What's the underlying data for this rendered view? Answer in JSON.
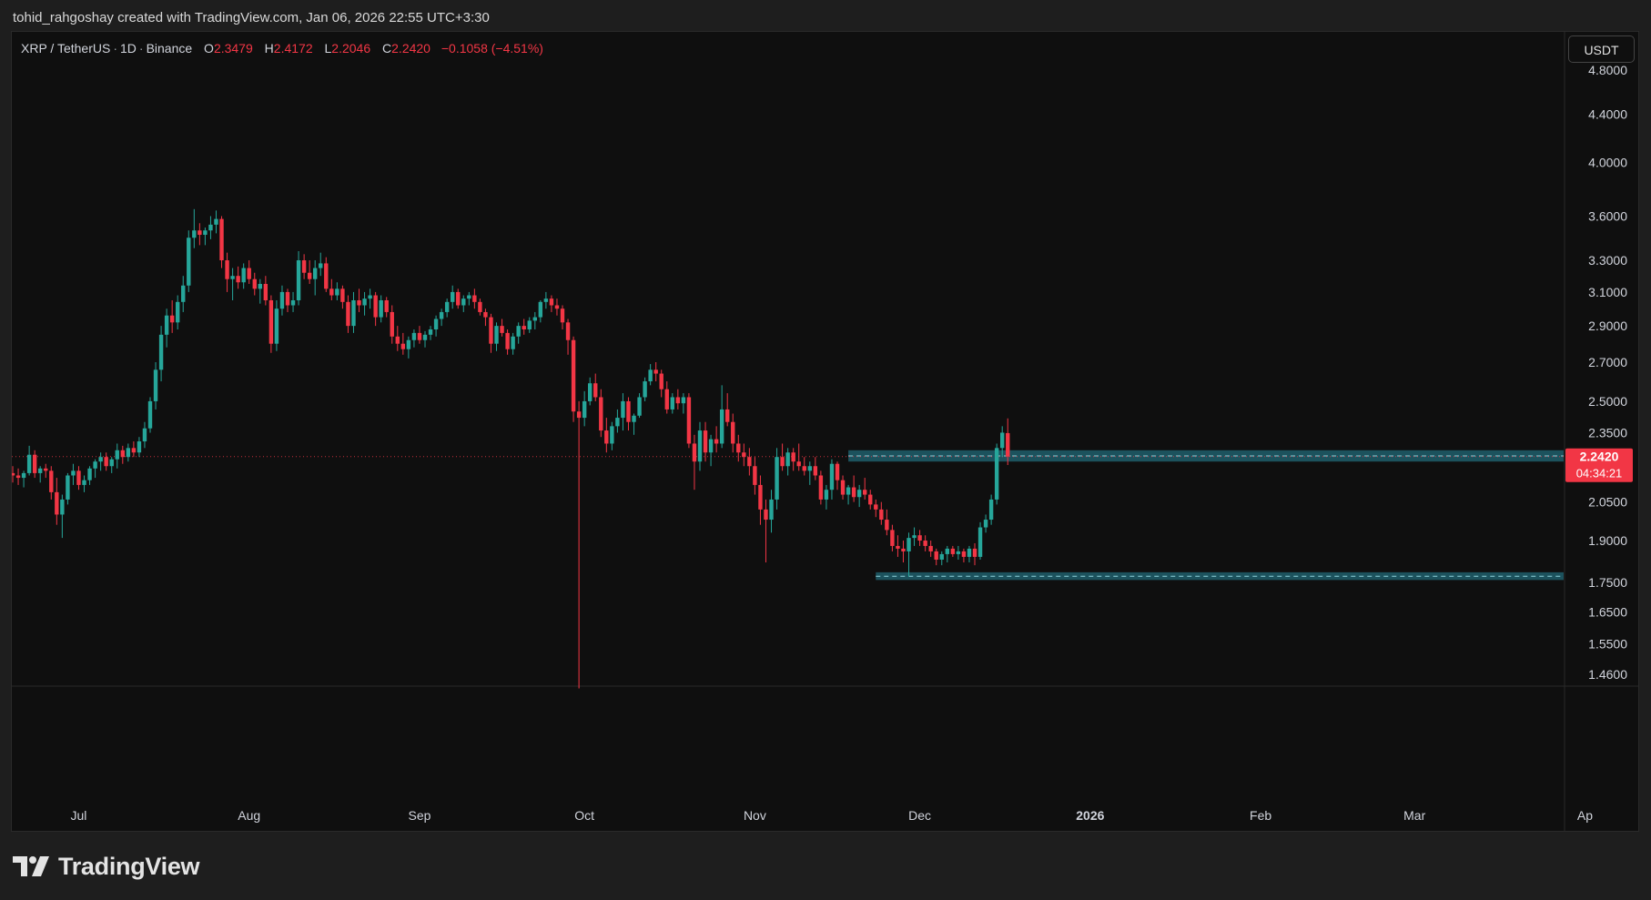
{
  "header": {
    "attribution": "tohid_rahgoshay created with TradingView.com, Jan 06, 2026 22:55 UTC+3:30"
  },
  "legend": {
    "symbol": "XRP / TetherUS",
    "interval": "1D",
    "exchange": "Binance",
    "open_label": "O",
    "open": "2.3479",
    "high_label": "H",
    "high": "2.4172",
    "low_label": "L",
    "low": "2.2046",
    "close_label": "C",
    "close": "2.2420",
    "change": "−0.1058 (−4.51%)"
  },
  "currency_button": "USDT",
  "price_label": {
    "price": "2.2420",
    "countdown": "04:34:21"
  },
  "colors": {
    "up": "#26a69a",
    "down": "#f23645",
    "zone_fill": "#1e5a66",
    "zone_line": "#8fd3dc",
    "background": "#0f0f0f",
    "axis_text": "#d1d4dc"
  },
  "footer": {
    "brand": "TradingView",
    "logo_icon": "tradingview-logo-icon"
  },
  "chart_data": {
    "type": "candlestick",
    "y_scale": "log",
    "ylim": [
      1.4,
      5.0
    ],
    "y_ticks": [
      "4.8000",
      "4.4000",
      "4.0000",
      "3.6000",
      "3.3000",
      "3.1000",
      "2.9000",
      "2.7000",
      "2.5000",
      "2.3500",
      "2.0500",
      "1.9000",
      "1.7500",
      "1.6500",
      "1.5500",
      "1.4600"
    ],
    "x_labels": [
      {
        "date": "2025-07-01",
        "label": "Jul",
        "bold": false
      },
      {
        "date": "2025-08-01",
        "label": "Aug",
        "bold": false
      },
      {
        "date": "2025-09-01",
        "label": "Sep",
        "bold": false
      },
      {
        "date": "2025-10-01",
        "label": "Oct",
        "bold": false
      },
      {
        "date": "2025-11-01",
        "label": "Nov",
        "bold": false
      },
      {
        "date": "2025-12-01",
        "label": "Dec",
        "bold": false
      },
      {
        "date": "2026-01-01",
        "label": "2026",
        "bold": true
      },
      {
        "date": "2026-02-01",
        "label": "Feb",
        "bold": false
      },
      {
        "date": "2026-03-01",
        "label": "Mar",
        "bold": false
      },
      {
        "date": "2026-04-01",
        "label": "Ap",
        "bold": false
      }
    ],
    "first_date": "2025-06-19",
    "last_price": 2.242,
    "zones": [
      {
        "name": "resistance",
        "top": 2.27,
        "bottom": 2.22,
        "mid": 2.245,
        "from": "2025-11-18"
      },
      {
        "name": "support",
        "top": 1.785,
        "bottom": 1.758,
        "mid": 1.771,
        "from": "2025-11-23"
      }
    ],
    "ohlc": [
      [
        2.17,
        2.2,
        2.13,
        2.16
      ],
      [
        2.16,
        2.19,
        2.12,
        2.15
      ],
      [
        2.15,
        2.18,
        2.11,
        2.17
      ],
      [
        2.17,
        2.29,
        2.16,
        2.25
      ],
      [
        2.25,
        2.27,
        2.15,
        2.17
      ],
      [
        2.17,
        2.2,
        2.13,
        2.19
      ],
      [
        2.19,
        2.21,
        2.15,
        2.18
      ],
      [
        2.18,
        2.2,
        2.06,
        2.09
      ],
      [
        2.09,
        2.15,
        1.96,
        2.0
      ],
      [
        2.0,
        2.08,
        1.91,
        2.06
      ],
      [
        2.06,
        2.17,
        2.04,
        2.16
      ],
      [
        2.16,
        2.21,
        2.12,
        2.18
      ],
      [
        2.18,
        2.2,
        2.1,
        2.12
      ],
      [
        2.12,
        2.16,
        2.09,
        2.14
      ],
      [
        2.14,
        2.2,
        2.12,
        2.19
      ],
      [
        2.19,
        2.23,
        2.15,
        2.22
      ],
      [
        2.22,
        2.26,
        2.18,
        2.24
      ],
      [
        2.24,
        2.26,
        2.18,
        2.2
      ],
      [
        2.2,
        2.24,
        2.17,
        2.23
      ],
      [
        2.23,
        2.3,
        2.19,
        2.27
      ],
      [
        2.27,
        2.29,
        2.21,
        2.24
      ],
      [
        2.24,
        2.3,
        2.22,
        2.28
      ],
      [
        2.28,
        2.31,
        2.24,
        2.26
      ],
      [
        2.26,
        2.33,
        2.24,
        2.31
      ],
      [
        2.31,
        2.4,
        2.28,
        2.37
      ],
      [
        2.37,
        2.52,
        2.35,
        2.5
      ],
      [
        2.5,
        2.7,
        2.46,
        2.66
      ],
      [
        2.66,
        2.9,
        2.6,
        2.85
      ],
      [
        2.85,
        3.0,
        2.78,
        2.96
      ],
      [
        2.96,
        3.05,
        2.86,
        2.92
      ],
      [
        2.92,
        3.08,
        2.88,
        3.04
      ],
      [
        3.04,
        3.2,
        2.98,
        3.14
      ],
      [
        3.14,
        3.5,
        3.1,
        3.45
      ],
      [
        3.45,
        3.65,
        3.38,
        3.5
      ],
      [
        3.5,
        3.55,
        3.4,
        3.47
      ],
      [
        3.47,
        3.52,
        3.4,
        3.5
      ],
      [
        3.5,
        3.6,
        3.44,
        3.54
      ],
      [
        3.54,
        3.64,
        3.48,
        3.58
      ],
      [
        3.58,
        3.6,
        3.25,
        3.3
      ],
      [
        3.3,
        3.35,
        3.1,
        3.18
      ],
      [
        3.18,
        3.25,
        3.05,
        3.2
      ],
      [
        3.2,
        3.26,
        3.12,
        3.16
      ],
      [
        3.16,
        3.28,
        3.12,
        3.25
      ],
      [
        3.25,
        3.3,
        3.15,
        3.18
      ],
      [
        3.18,
        3.22,
        3.08,
        3.12
      ],
      [
        3.12,
        3.18,
        3.03,
        3.15
      ],
      [
        3.15,
        3.2,
        3.02,
        3.05
      ],
      [
        3.05,
        3.08,
        2.75,
        2.8
      ],
      [
        2.8,
        3.05,
        2.76,
        3.0
      ],
      [
        3.0,
        3.14,
        2.96,
        3.1
      ],
      [
        3.1,
        3.12,
        2.98,
        3.02
      ],
      [
        3.02,
        3.1,
        2.98,
        3.05
      ],
      [
        3.05,
        3.36,
        3.02,
        3.3
      ],
      [
        3.3,
        3.34,
        3.18,
        3.22
      ],
      [
        3.22,
        3.3,
        3.15,
        3.18
      ],
      [
        3.18,
        3.3,
        3.08,
        3.25
      ],
      [
        3.25,
        3.35,
        3.2,
        3.28
      ],
      [
        3.28,
        3.32,
        3.1,
        3.12
      ],
      [
        3.12,
        3.18,
        3.05,
        3.08
      ],
      [
        3.08,
        3.16,
        3.05,
        3.12
      ],
      [
        3.12,
        3.14,
        3.0,
        3.04
      ],
      [
        3.04,
        3.08,
        2.86,
        2.9
      ],
      [
        2.9,
        3.1,
        2.86,
        3.05
      ],
      [
        3.05,
        3.12,
        2.98,
        3.02
      ],
      [
        3.02,
        3.1,
        2.96,
        3.06
      ],
      [
        3.06,
        3.12,
        3.0,
        3.08
      ],
      [
        3.08,
        3.1,
        2.9,
        2.95
      ],
      [
        2.95,
        3.08,
        2.92,
        3.05
      ],
      [
        3.05,
        3.07,
        2.95,
        2.98
      ],
      [
        2.98,
        3.02,
        2.8,
        2.84
      ],
      [
        2.84,
        2.9,
        2.76,
        2.8
      ],
      [
        2.8,
        2.86,
        2.74,
        2.77
      ],
      [
        2.77,
        2.84,
        2.72,
        2.82
      ],
      [
        2.82,
        2.88,
        2.78,
        2.86
      ],
      [
        2.86,
        2.9,
        2.8,
        2.82
      ],
      [
        2.82,
        2.87,
        2.78,
        2.85
      ],
      [
        2.85,
        2.9,
        2.82,
        2.88
      ],
      [
        2.88,
        2.96,
        2.84,
        2.94
      ],
      [
        2.94,
        3.0,
        2.9,
        2.98
      ],
      [
        2.98,
        3.06,
        2.95,
        3.04
      ],
      [
        3.04,
        3.14,
        3.0,
        3.1
      ],
      [
        3.1,
        3.12,
        3.0,
        3.02
      ],
      [
        3.02,
        3.08,
        2.98,
        3.06
      ],
      [
        3.06,
        3.1,
        3.02,
        3.08
      ],
      [
        3.08,
        3.12,
        3.0,
        3.04
      ],
      [
        3.04,
        3.06,
        2.96,
        2.98
      ],
      [
        2.98,
        3.0,
        2.9,
        2.95
      ],
      [
        2.95,
        2.97,
        2.75,
        2.8
      ],
      [
        2.8,
        2.92,
        2.76,
        2.9
      ],
      [
        2.9,
        2.94,
        2.84,
        2.86
      ],
      [
        2.86,
        2.88,
        2.74,
        2.77
      ],
      [
        2.77,
        2.86,
        2.74,
        2.84
      ],
      [
        2.84,
        2.92,
        2.8,
        2.9
      ],
      [
        2.9,
        2.94,
        2.85,
        2.88
      ],
      [
        2.88,
        2.95,
        2.86,
        2.93
      ],
      [
        2.93,
        2.98,
        2.88,
        2.95
      ],
      [
        2.95,
        3.05,
        2.92,
        3.04
      ],
      [
        3.04,
        3.1,
        3.0,
        3.06
      ],
      [
        3.06,
        3.08,
        2.98,
        3.02
      ],
      [
        3.02,
        3.06,
        2.96,
        3.0
      ],
      [
        3.0,
        3.02,
        2.88,
        2.92
      ],
      [
        2.92,
        2.94,
        2.74,
        2.82
      ],
      [
        2.82,
        2.84,
        2.4,
        2.45
      ],
      [
        2.45,
        2.5,
        1.42,
        2.42
      ],
      [
        2.42,
        2.55,
        2.38,
        2.5
      ],
      [
        2.5,
        2.62,
        2.48,
        2.59
      ],
      [
        2.59,
        2.64,
        2.5,
        2.52
      ],
      [
        2.52,
        2.56,
        2.33,
        2.36
      ],
      [
        2.36,
        2.42,
        2.26,
        2.3
      ],
      [
        2.3,
        2.4,
        2.27,
        2.38
      ],
      [
        2.38,
        2.46,
        2.35,
        2.42
      ],
      [
        2.42,
        2.54,
        2.36,
        2.5
      ],
      [
        2.5,
        2.52,
        2.36,
        2.4
      ],
      [
        2.4,
        2.44,
        2.34,
        2.43
      ],
      [
        2.43,
        2.54,
        2.42,
        2.52
      ],
      [
        2.52,
        2.62,
        2.5,
        2.6
      ],
      [
        2.6,
        2.69,
        2.58,
        2.66
      ],
      [
        2.66,
        2.7,
        2.6,
        2.64
      ],
      [
        2.64,
        2.66,
        2.52,
        2.56
      ],
      [
        2.56,
        2.6,
        2.44,
        2.46
      ],
      [
        2.46,
        2.54,
        2.44,
        2.52
      ],
      [
        2.52,
        2.56,
        2.46,
        2.49
      ],
      [
        2.49,
        2.54,
        2.44,
        2.52
      ],
      [
        2.52,
        2.54,
        2.28,
        2.3
      ],
      [
        2.3,
        2.34,
        2.1,
        2.22
      ],
      [
        2.22,
        2.4,
        2.18,
        2.36
      ],
      [
        2.36,
        2.4,
        2.22,
        2.26
      ],
      [
        2.26,
        2.34,
        2.2,
        2.32
      ],
      [
        2.32,
        2.38,
        2.26,
        2.3
      ],
      [
        2.3,
        2.58,
        2.28,
        2.46
      ],
      [
        2.46,
        2.54,
        2.38,
        2.4
      ],
      [
        2.4,
        2.44,
        2.26,
        2.3
      ],
      [
        2.3,
        2.34,
        2.22,
        2.26
      ],
      [
        2.26,
        2.3,
        2.2,
        2.24
      ],
      [
        2.24,
        2.28,
        2.16,
        2.2
      ],
      [
        2.2,
        2.24,
        2.08,
        2.12
      ],
      [
        2.12,
        2.16,
        1.96,
        2.02
      ],
      [
        2.02,
        2.06,
        1.82,
        1.98
      ],
      [
        1.98,
        2.1,
        1.93,
        2.06
      ],
      [
        2.06,
        2.28,
        2.02,
        2.24
      ],
      [
        2.24,
        2.3,
        2.18,
        2.2
      ],
      [
        2.2,
        2.28,
        2.16,
        2.26
      ],
      [
        2.26,
        2.28,
        2.18,
        2.22
      ],
      [
        2.22,
        2.3,
        2.18,
        2.2
      ],
      [
        2.2,
        2.24,
        2.16,
        2.18
      ],
      [
        2.18,
        2.22,
        2.12,
        2.2
      ],
      [
        2.2,
        2.24,
        2.14,
        2.16
      ],
      [
        2.16,
        2.18,
        2.04,
        2.06
      ],
      [
        2.06,
        2.12,
        2.02,
        2.1
      ],
      [
        2.1,
        2.23,
        2.06,
        2.21
      ],
      [
        2.21,
        2.22,
        2.1,
        2.14
      ],
      [
        2.14,
        2.16,
        2.06,
        2.08
      ],
      [
        2.08,
        2.12,
        2.04,
        2.11
      ],
      [
        2.11,
        2.16,
        2.05,
        2.07
      ],
      [
        2.07,
        2.12,
        2.03,
        2.1
      ],
      [
        2.1,
        2.15,
        2.06,
        2.08
      ],
      [
        2.08,
        2.1,
        2.02,
        2.04
      ],
      [
        2.04,
        2.06,
        1.99,
        2.02
      ],
      [
        2.02,
        2.05,
        1.96,
        1.98
      ],
      [
        1.98,
        2.02,
        1.92,
        1.94
      ],
      [
        1.94,
        1.96,
        1.86,
        1.88
      ],
      [
        1.88,
        1.92,
        1.84,
        1.87
      ],
      [
        1.87,
        1.9,
        1.82,
        1.86
      ],
      [
        1.86,
        1.93,
        1.77,
        1.91
      ],
      [
        1.91,
        1.95,
        1.88,
        1.92
      ],
      [
        1.92,
        1.94,
        1.88,
        1.9
      ],
      [
        1.9,
        1.92,
        1.86,
        1.88
      ],
      [
        1.88,
        1.9,
        1.84,
        1.86
      ],
      [
        1.86,
        1.87,
        1.81,
        1.83
      ],
      [
        1.83,
        1.86,
        1.81,
        1.85
      ],
      [
        1.85,
        1.88,
        1.82,
        1.87
      ],
      [
        1.87,
        1.88,
        1.84,
        1.85
      ],
      [
        1.85,
        1.88,
        1.83,
        1.86
      ],
      [
        1.86,
        1.87,
        1.82,
        1.84
      ],
      [
        1.84,
        1.88,
        1.82,
        1.87
      ],
      [
        1.87,
        1.89,
        1.81,
        1.84
      ],
      [
        1.84,
        1.97,
        1.83,
        1.95
      ],
      [
        1.95,
        2.0,
        1.93,
        1.98
      ],
      [
        1.98,
        2.08,
        1.96,
        2.06
      ],
      [
        2.06,
        2.3,
        2.04,
        2.28
      ],
      [
        2.28,
        2.38,
        2.24,
        2.35
      ],
      [
        2.348,
        2.417,
        2.205,
        2.242
      ]
    ]
  }
}
